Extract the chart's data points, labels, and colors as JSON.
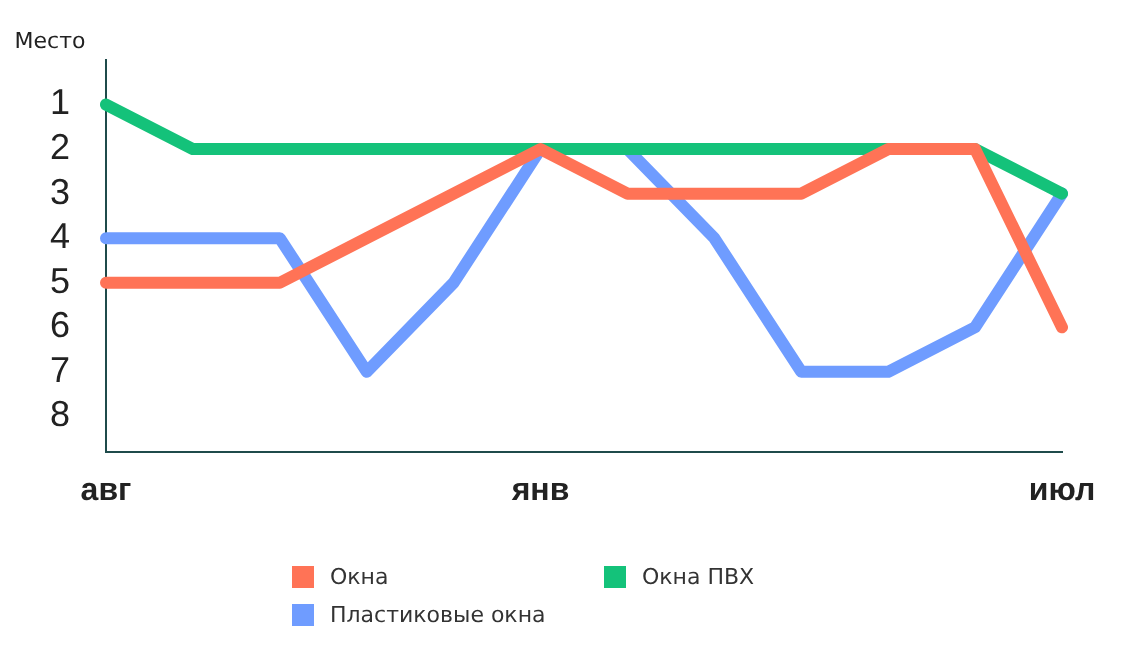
{
  "chart_data": {
    "type": "line",
    "ylabel": "Место",
    "categories": [
      "авг",
      null,
      null,
      null,
      null,
      "янв",
      null,
      null,
      null,
      null,
      null,
      "июл"
    ],
    "series": [
      {
        "name": "Окна",
        "color": "#ff7356",
        "values": [
          5,
          5,
          5,
          4,
          3,
          2,
          3,
          3,
          3,
          2,
          2,
          6
        ]
      },
      {
        "name": "Окна ПВХ",
        "color": "#14c27a",
        "values": [
          1,
          2,
          2,
          2,
          2,
          2,
          2,
          2,
          2,
          2,
          2,
          3
        ]
      },
      {
        "name": "Пластиковые окна",
        "color": "#6f9cff",
        "values": [
          4,
          4,
          4,
          7,
          5,
          2,
          2,
          4,
          7,
          7,
          6,
          3
        ]
      }
    ],
    "ylim": [
      8.8,
      0
    ],
    "yticks": [
      1,
      2,
      3,
      4,
      5,
      6,
      7,
      8
    ],
    "grid": false,
    "legend": "bottom",
    "marker": "none",
    "line_style": "solid"
  }
}
